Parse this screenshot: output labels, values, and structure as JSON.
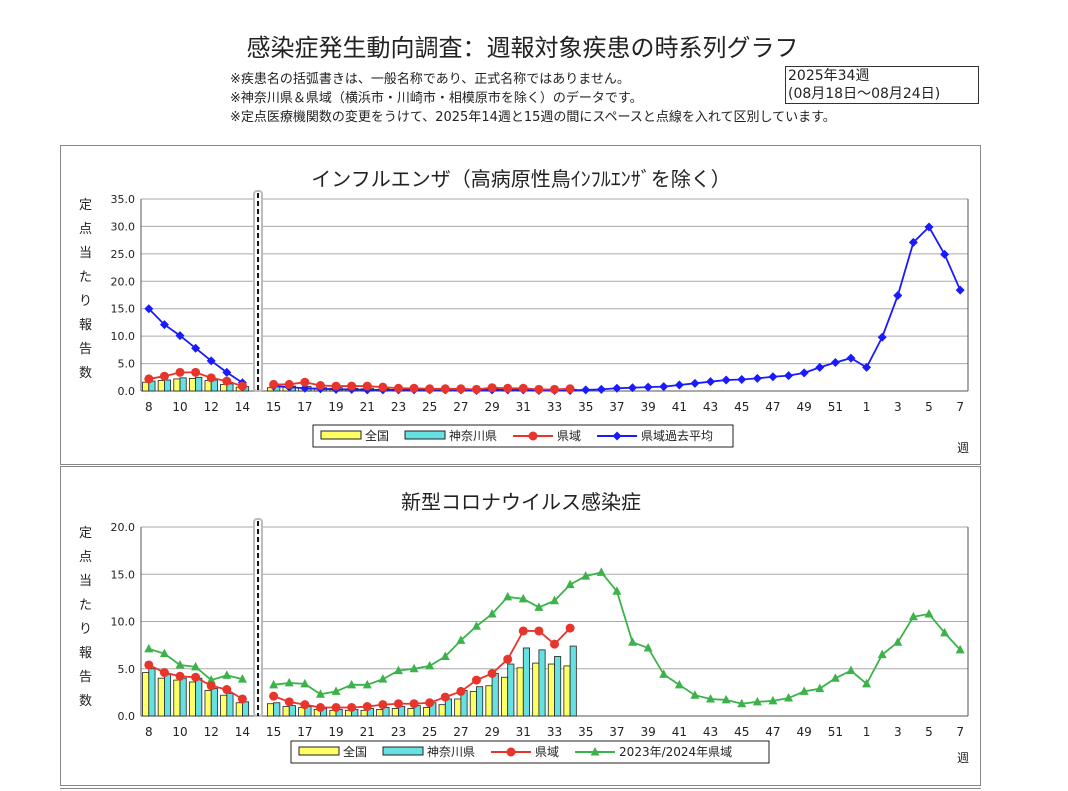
{
  "header": {
    "title": "感染症発生動向調査：週報対象疾患の時系列グラフ",
    "notes": [
      "※疾患名の括弧書きは、一般名称であり、正式名称ではありません。",
      "※神奈川県＆県域（横浜市・川崎市・相模原市を除く）のデータです。",
      "※定点医療機関数の変更をうけて、2025年14週と15週の間にスペースと点線を入れて区別しています。"
    ],
    "week_line1": "2025年34週",
    "week_line2": "(08月18日～08月24日)"
  },
  "colors": {
    "national": "#ffff66",
    "kanagawa": "#66e0e0",
    "prefecture": "#e8352c",
    "past_blue": "#1a1aff",
    "past_green": "#3cb34a",
    "grid": "#aaaaaa"
  },
  "chart_data": [
    {
      "type": "bar",
      "title": "インフルエンザ（高病原性鳥ｲﾝﾌﾙｴﾝｻﾞを除く）",
      "ylabel": "定点当たり報告数",
      "xlabel": "週",
      "ylim": [
        0,
        35
      ],
      "yticks": [
        "0.0",
        "5.0",
        "10.0",
        "15.0",
        "20.0",
        "25.0",
        "30.0",
        "35.0"
      ],
      "legend": [
        "全国",
        "神奈川県",
        "県域",
        "県域過去平均"
      ],
      "legend_placement": "bottom",
      "xticks": [
        "8",
        "10",
        "12",
        "14",
        "15",
        "17",
        "19",
        "21",
        "23",
        "25",
        "27",
        "29",
        "31",
        "33",
        "35",
        "37",
        "39",
        "41",
        "43",
        "45",
        "47",
        "49",
        "51",
        "1",
        "3",
        "5",
        "7"
      ],
      "weeks_before_break": [
        8,
        9,
        10,
        11,
        12,
        13,
        14
      ],
      "weeks_after_break": [
        15,
        16,
        17,
        18,
        19,
        20,
        21,
        22,
        23,
        24,
        25,
        26,
        27,
        28,
        29,
        30,
        31,
        32,
        33,
        34,
        35,
        36,
        37,
        38,
        39,
        40,
        41,
        42,
        43,
        44,
        45,
        46,
        47,
        48,
        49,
        50,
        51,
        52,
        1,
        2,
        3,
        4,
        5,
        6,
        7
      ],
      "series": [
        {
          "name": "全国",
          "kind": "bar",
          "before": [
            1.6,
            1.9,
            2.2,
            2.3,
            1.9,
            1.2,
            0.7
          ],
          "after": [
            0.6,
            0.7,
            0.6,
            0.5,
            0.5,
            0.4,
            0.4,
            0.3,
            0.3,
            0.3,
            0.3,
            0.2,
            0.2,
            0.2,
            0.3,
            0.3,
            0.3,
            0.3,
            0.2,
            0.2
          ]
        },
        {
          "name": "神奈川県",
          "kind": "bar",
          "before": [
            1.8,
            2.0,
            2.4,
            2.5,
            2.0,
            1.3,
            0.8
          ],
          "after": [
            0.8,
            0.9,
            0.8,
            0.6,
            0.6,
            0.5,
            0.5,
            0.4,
            0.4,
            0.4,
            0.3,
            0.3,
            0.3,
            0.3,
            0.4,
            0.4,
            0.4,
            0.3,
            0.3,
            0.3
          ]
        },
        {
          "name": "県域",
          "kind": "line",
          "before": [
            2.2,
            2.7,
            3.4,
            3.4,
            2.4,
            1.8,
            0.9
          ],
          "after": [
            1.2,
            1.2,
            1.6,
            1.0,
            0.9,
            0.9,
            0.9,
            0.7,
            0.5,
            0.5,
            0.4,
            0.4,
            0.4,
            0.3,
            0.6,
            0.5,
            0.5,
            0.3,
            0.3,
            0.4
          ]
        },
        {
          "name": "県域過去平均",
          "kind": "line",
          "before": [
            15.0,
            12.1,
            10.1,
            7.8,
            5.5,
            3.4,
            1.5
          ],
          "after": [
            0.9,
            0.7,
            0.5,
            0.4,
            0.3,
            0.3,
            0.2,
            0.2,
            0.2,
            0.2,
            0.2,
            0.2,
            0.2,
            0.1,
            0.2,
            0.2,
            0.2,
            0.1,
            0.1,
            0.1,
            0.2,
            0.3,
            0.5,
            0.6,
            0.7,
            0.8,
            1.1,
            1.4,
            1.7,
            2.0,
            2.1,
            2.3,
            2.6,
            2.8,
            3.3,
            4.3,
            5.2,
            6.0,
            4.3,
            9.8,
            17.4,
            27.1,
            29.9,
            24.9,
            18.4
          ]
        }
      ]
    },
    {
      "type": "bar",
      "title": "新型コロナウイルス感染症",
      "ylabel": "定点当たり報告数",
      "xlabel": "週",
      "ylim": [
        0,
        20
      ],
      "yticks": [
        "0.0",
        "5.0",
        "10.0",
        "15.0",
        "20.0"
      ],
      "legend": [
        "全国",
        "神奈川県",
        "県域",
        "2023年/2024年県域"
      ],
      "legend_placement": "bottom",
      "xticks": [
        "8",
        "10",
        "12",
        "14",
        "15",
        "17",
        "19",
        "21",
        "23",
        "25",
        "27",
        "29",
        "31",
        "33",
        "35",
        "37",
        "39",
        "41",
        "43",
        "45",
        "47",
        "49",
        "51",
        "1",
        "3",
        "5",
        "7"
      ],
      "weeks_before_break": [
        8,
        9,
        10,
        11,
        12,
        13,
        14
      ],
      "weeks_after_break": [
        15,
        16,
        17,
        18,
        19,
        20,
        21,
        22,
        23,
        24,
        25,
        26,
        27,
        28,
        29,
        30,
        31,
        32,
        33,
        34,
        35,
        36,
        37,
        38,
        39,
        40,
        41,
        42,
        43,
        44,
        45,
        46,
        47,
        48,
        49,
        50,
        51,
        52,
        1,
        2,
        3,
        4,
        5,
        6,
        7
      ],
      "series": [
        {
          "name": "全国",
          "kind": "bar",
          "before": [
            4.6,
            4.0,
            3.8,
            3.6,
            2.7,
            2.2,
            1.4
          ],
          "after": [
            1.3,
            1.0,
            0.9,
            0.7,
            0.6,
            0.6,
            0.6,
            0.7,
            0.8,
            0.8,
            0.9,
            1.2,
            1.8,
            2.6,
            3.2,
            4.1,
            5.1,
            5.6,
            5.5,
            5.3
          ]
        },
        {
          "name": "神奈川県",
          "kind": "bar",
          "before": [
            5.0,
            4.4,
            4.0,
            4.0,
            2.9,
            2.4,
            1.5
          ],
          "after": [
            1.4,
            1.1,
            1.0,
            0.8,
            0.7,
            0.7,
            0.8,
            0.9,
            1.0,
            1.1,
            1.4,
            1.8,
            2.7,
            3.1,
            4.5,
            5.5,
            7.2,
            7.0,
            6.3,
            7.4
          ]
        },
        {
          "name": "県域",
          "kind": "line",
          "before": [
            5.4,
            4.6,
            4.2,
            4.1,
            3.2,
            2.8,
            1.8
          ],
          "after": [
            2.1,
            1.5,
            1.2,
            0.9,
            0.9,
            0.9,
            1.0,
            1.2,
            1.3,
            1.3,
            1.4,
            2.0,
            2.6,
            3.8,
            4.5,
            6.0,
            9.0,
            9.0,
            7.6,
            9.3
          ]
        },
        {
          "name": "2023年/2024年県域",
          "kind": "line",
          "before": [
            7.1,
            6.6,
            5.4,
            5.2,
            3.8,
            4.3,
            3.9
          ],
          "after": [
            3.3,
            3.5,
            3.4,
            2.3,
            2.6,
            3.3,
            3.3,
            3.9,
            4.8,
            5.0,
            5.3,
            6.3,
            8.0,
            9.5,
            10.8,
            12.6,
            12.4,
            11.5,
            12.2,
            13.9,
            14.8,
            15.2,
            13.2,
            7.8,
            7.2,
            4.4,
            3.3,
            2.2,
            1.8,
            1.7,
            1.3,
            1.5,
            1.6,
            1.9,
            2.6,
            2.9,
            4.0,
            4.8,
            3.4,
            6.5,
            7.8,
            10.5,
            10.8,
            8.8,
            7.0
          ]
        }
      ]
    }
  ]
}
